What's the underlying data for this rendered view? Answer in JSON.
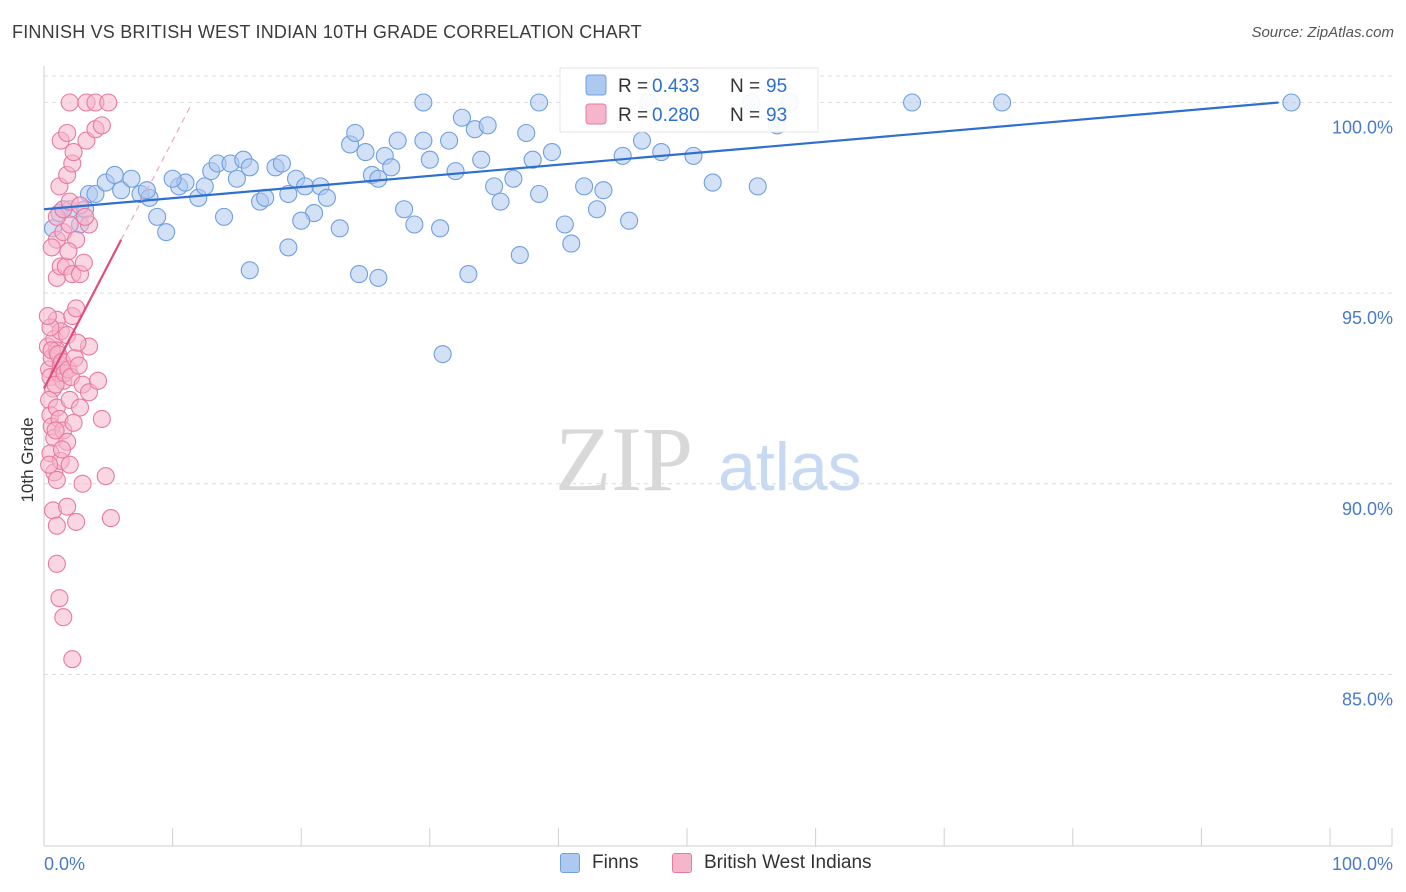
{
  "title": "FINNISH VS BRITISH WEST INDIAN 10TH GRADE CORRELATION CHART",
  "source": "Source: ZipAtlas.com",
  "watermark": {
    "zip": "ZIP",
    "atlas": "atlas"
  },
  "chart_data": {
    "type": "scatter",
    "title": "FINNISH VS BRITISH WEST INDIAN 10TH GRADE CORRELATION CHART",
    "xlabel": "",
    "ylabel": "10th Grade",
    "xlim": [
      0,
      100
    ],
    "ylim": [
      80.5,
      100.8
    ],
    "x_tick_labels": [
      "0.0%",
      "100.0%"
    ],
    "y_ticks": [
      85,
      90,
      95,
      100
    ],
    "y_tick_labels": [
      "85.0%",
      "90.0%",
      "95.0%",
      "100.0%"
    ],
    "legend": [
      {
        "r_label": "R =",
        "r_value": "0.433",
        "n_label": "N =",
        "n_value": "95"
      },
      {
        "r_label": "R =",
        "r_value": "0.280",
        "n_label": "N =",
        "n_value": "93"
      }
    ],
    "series": [
      {
        "name": "Finns",
        "color": "#6f9fe0",
        "fill": "#aec9f0",
        "trend_color": "#2f6fcf",
        "trend": {
          "x0": 0,
          "y0": 97.2,
          "x1": 96,
          "y1": 100.0
        },
        "points": [
          [
            0.7,
            96.7
          ],
          [
            1.2,
            97.1
          ],
          [
            1.5,
            97.2
          ],
          [
            2.0,
            97.2
          ],
          [
            2.8,
            96.8
          ],
          [
            3.2,
            97.2
          ],
          [
            3.5,
            97.6
          ],
          [
            4.0,
            97.6
          ],
          [
            4.8,
            97.9
          ],
          [
            5.5,
            98.1
          ],
          [
            6.0,
            97.7
          ],
          [
            6.8,
            98.0
          ],
          [
            7.5,
            97.6
          ],
          [
            8.2,
            97.5
          ],
          [
            8.8,
            97.0
          ],
          [
            9.5,
            96.6
          ],
          [
            10.5,
            97.8
          ],
          [
            11.0,
            97.9
          ],
          [
            12.0,
            97.5
          ],
          [
            12.5,
            97.8
          ],
          [
            13.0,
            98.2
          ],
          [
            13.5,
            98.4
          ],
          [
            14.5,
            98.4
          ],
          [
            15.0,
            98.0
          ],
          [
            15.5,
            98.5
          ],
          [
            16.0,
            98.3
          ],
          [
            16.8,
            97.4
          ],
          [
            17.2,
            97.5
          ],
          [
            18.0,
            98.3
          ],
          [
            18.5,
            98.4
          ],
          [
            19.0,
            97.6
          ],
          [
            19.6,
            98.0
          ],
          [
            20.3,
            97.8
          ],
          [
            21.0,
            97.1
          ],
          [
            21.5,
            97.8
          ],
          [
            22.0,
            97.5
          ],
          [
            23.0,
            96.7
          ],
          [
            23.8,
            98.9
          ],
          [
            24.2,
            99.2
          ],
          [
            25.0,
            98.7
          ],
          [
            25.5,
            98.1
          ],
          [
            26.0,
            98.0
          ],
          [
            26.5,
            98.6
          ],
          [
            27.0,
            98.3
          ],
          [
            27.5,
            99.0
          ],
          [
            28.0,
            97.2
          ],
          [
            28.8,
            96.8
          ],
          [
            29.5,
            99.0
          ],
          [
            30.0,
            98.5
          ],
          [
            30.8,
            96.7
          ],
          [
            31.5,
            99.0
          ],
          [
            32.0,
            98.2
          ],
          [
            32.5,
            99.6
          ],
          [
            33.5,
            99.3
          ],
          [
            34.0,
            98.5
          ],
          [
            34.5,
            99.4
          ],
          [
            35.0,
            97.8
          ],
          [
            35.5,
            97.4
          ],
          [
            36.5,
            98.0
          ],
          [
            37.5,
            99.2
          ],
          [
            38.0,
            98.5
          ],
          [
            38.5,
            97.6
          ],
          [
            39.5,
            98.7
          ],
          [
            40.5,
            96.8
          ],
          [
            41.0,
            96.3
          ],
          [
            42.0,
            97.8
          ],
          [
            43.5,
            97.7
          ],
          [
            45.0,
            98.6
          ],
          [
            46.5,
            99.0
          ],
          [
            48.0,
            98.7
          ],
          [
            50.5,
            98.6
          ],
          [
            52.0,
            97.9
          ],
          [
            55.5,
            97.8
          ],
          [
            57.0,
            99.4
          ],
          [
            20.0,
            96.9
          ],
          [
            16.0,
            95.6
          ],
          [
            24.5,
            95.5
          ],
          [
            26.0,
            95.4
          ],
          [
            33.0,
            95.5
          ],
          [
            31.0,
            93.4
          ],
          [
            19.0,
            96.2
          ],
          [
            37.0,
            96.0
          ],
          [
            14.0,
            97.0
          ],
          [
            45.5,
            96.9
          ],
          [
            10.0,
            98.0
          ],
          [
            8.0,
            97.7
          ],
          [
            29.5,
            100.0
          ],
          [
            38.5,
            100.0
          ],
          [
            47.0,
            100.0
          ],
          [
            55.0,
            100.0
          ],
          [
            58.0,
            100.0
          ],
          [
            67.5,
            100.0
          ],
          [
            74.5,
            100.0
          ],
          [
            97.0,
            100.0
          ],
          [
            43.0,
            97.2
          ]
        ]
      },
      {
        "name": "British West Indians",
        "color": "#e87aa0",
        "fill": "#f5b5cb",
        "trend_color": "#e04c82",
        "trend": {
          "x0": 0,
          "y0": 92.5,
          "x1": 6.0,
          "y1": 96.4
        },
        "points": [
          [
            0.3,
            93.6
          ],
          [
            0.4,
            93.0
          ],
          [
            0.5,
            92.8
          ],
          [
            0.6,
            93.3
          ],
          [
            0.7,
            92.5
          ],
          [
            0.8,
            93.8
          ],
          [
            1.0,
            93.5
          ],
          [
            1.2,
            92.9
          ],
          [
            1.3,
            93.1
          ],
          [
            1.5,
            92.7
          ],
          [
            0.4,
            92.2
          ],
          [
            0.5,
            91.8
          ],
          [
            0.6,
            91.5
          ],
          [
            0.8,
            91.2
          ],
          [
            1.0,
            92.0
          ],
          [
            1.2,
            91.7
          ],
          [
            1.5,
            91.4
          ],
          [
            1.8,
            91.1
          ],
          [
            2.0,
            92.2
          ],
          [
            2.3,
            91.6
          ],
          [
            0.5,
            90.8
          ],
          [
            0.8,
            90.3
          ],
          [
            1.0,
            90.1
          ],
          [
            1.3,
            90.6
          ],
          [
            2.0,
            90.5
          ],
          [
            3.0,
            90.0
          ],
          [
            0.7,
            89.3
          ],
          [
            1.0,
            88.9
          ],
          [
            1.8,
            89.4
          ],
          [
            2.5,
            89.0
          ],
          [
            1.0,
            87.9
          ],
          [
            1.2,
            87.0
          ],
          [
            1.5,
            86.5
          ],
          [
            2.2,
            85.4
          ],
          [
            1.0,
            94.3
          ],
          [
            1.3,
            94.0
          ],
          [
            1.8,
            93.9
          ],
          [
            2.2,
            94.4
          ],
          [
            2.5,
            94.6
          ],
          [
            3.5,
            93.6
          ],
          [
            1.0,
            95.4
          ],
          [
            1.3,
            95.7
          ],
          [
            1.7,
            95.7
          ],
          [
            2.2,
            95.5
          ],
          [
            2.8,
            95.5
          ],
          [
            1.0,
            96.4
          ],
          [
            1.5,
            96.6
          ],
          [
            2.0,
            96.8
          ],
          [
            2.5,
            96.4
          ],
          [
            3.5,
            96.8
          ],
          [
            1.0,
            97.0
          ],
          [
            1.5,
            97.2
          ],
          [
            2.0,
            97.4
          ],
          [
            2.8,
            97.3
          ],
          [
            3.2,
            97.0
          ],
          [
            1.2,
            97.8
          ],
          [
            1.8,
            98.1
          ],
          [
            2.2,
            98.4
          ],
          [
            1.3,
            99.0
          ],
          [
            1.8,
            99.2
          ],
          [
            2.3,
            98.7
          ],
          [
            3.3,
            99.0
          ],
          [
            4.0,
            99.3
          ],
          [
            4.5,
            99.4
          ],
          [
            2.0,
            100.0
          ],
          [
            3.3,
            100.0
          ],
          [
            4.0,
            100.0
          ],
          [
            5.0,
            100.0
          ],
          [
            0.5,
            94.1
          ],
          [
            0.6,
            93.5
          ],
          [
            0.9,
            92.6
          ],
          [
            1.1,
            93.4
          ],
          [
            1.4,
            93.2
          ],
          [
            1.6,
            92.9
          ],
          [
            1.9,
            93.0
          ],
          [
            2.1,
            92.8
          ],
          [
            2.4,
            93.3
          ],
          [
            2.7,
            93.1
          ],
          [
            3.0,
            92.6
          ],
          [
            3.5,
            92.4
          ],
          [
            4.2,
            92.7
          ],
          [
            4.5,
            91.7
          ],
          [
            2.8,
            92.0
          ],
          [
            0.4,
            90.5
          ],
          [
            0.9,
            91.4
          ],
          [
            1.4,
            90.9
          ],
          [
            4.8,
            90.2
          ],
          [
            5.2,
            89.1
          ],
          [
            1.9,
            96.1
          ],
          [
            3.1,
            95.8
          ],
          [
            0.6,
            96.2
          ],
          [
            2.6,
            93.7
          ],
          [
            0.3,
            94.4
          ]
        ]
      }
    ]
  }
}
